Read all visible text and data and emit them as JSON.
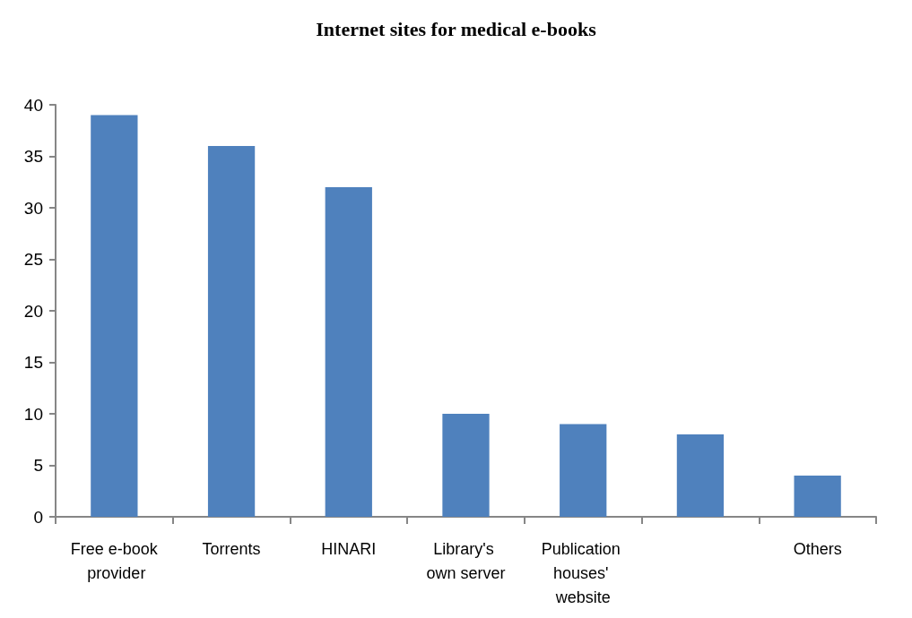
{
  "chart_data": {
    "type": "bar",
    "title": "Internet sites for medical e-books",
    "categories": [
      "Free e-book provider",
      "Torrents",
      "HINARI",
      "Library's own server",
      "Publication houses' website",
      null,
      "Others"
    ],
    "values": [
      39,
      36,
      32,
      10,
      9,
      8,
      4
    ],
    "color": "#4f81bd",
    "ylim": [
      0,
      40
    ],
    "yticks": [
      0,
      5,
      10,
      15,
      20,
      25,
      30,
      35,
      40
    ],
    "grid": false
  }
}
